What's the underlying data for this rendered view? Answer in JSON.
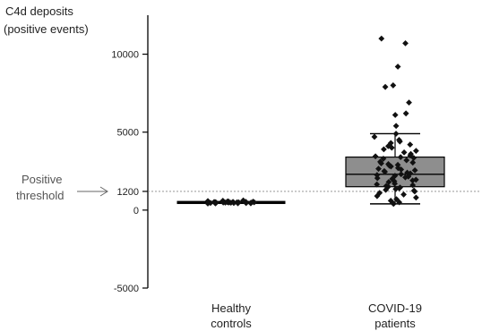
{
  "chart_data": {
    "type": "box",
    "ylabel_line1": "C4d deposits",
    "ylabel_line2": "(positive events)",
    "ylim": [
      -5000,
      12500
    ],
    "yticks": [
      -5000,
      0,
      1200,
      5000,
      10000
    ],
    "ytick_labels": [
      "-5000",
      "0",
      "1200",
      "5000",
      "10000"
    ],
    "categories": [
      {
        "line1": "Healthy",
        "line2": "controls"
      },
      {
        "line1": "COVID-19",
        "line2": "patients"
      }
    ],
    "threshold": {
      "value": 1200,
      "label_line1": "Positive",
      "label_line2": "threshold"
    },
    "groups": [
      {
        "name": "Healthy controls",
        "whisker_low": 380,
        "q1": 420,
        "median": 480,
        "q3": 560,
        "whisker_high": 650,
        "points": [
          420,
          440,
          460,
          470,
          480,
          490,
          500,
          510,
          520,
          530,
          540,
          450,
          470,
          500,
          530,
          560,
          480,
          510,
          440,
          600,
          620,
          460,
          500,
          550,
          520,
          490,
          470,
          580,
          430,
          510
        ]
      },
      {
        "name": "COVID-19 patients",
        "whisker_low": 400,
        "q1": 1500,
        "median": 2300,
        "q3": 3400,
        "whisker_high": 4900,
        "points": [
          11000,
          10700,
          9200,
          8000,
          7900,
          6900,
          6200,
          6100,
          5400,
          4900,
          4700,
          4500,
          4400,
          4300,
          4200,
          4100,
          4000,
          3900,
          3800,
          3700,
          3600,
          3500,
          3450,
          3400,
          3350,
          3300,
          3200,
          3100,
          3050,
          3000,
          2950,
          2900,
          2850,
          2800,
          2700,
          2650,
          2600,
          2550,
          2500,
          2450,
          2400,
          2350,
          2300,
          2250,
          2200,
          2150,
          2100,
          2050,
          2000,
          1950,
          1900,
          1850,
          1800,
          1700,
          1650,
          1600,
          1550,
          1500,
          1450,
          1400,
          1350,
          1300,
          1250,
          1200,
          1100,
          1000,
          900,
          800,
          700,
          600,
          500,
          450,
          400
        ]
      }
    ]
  }
}
